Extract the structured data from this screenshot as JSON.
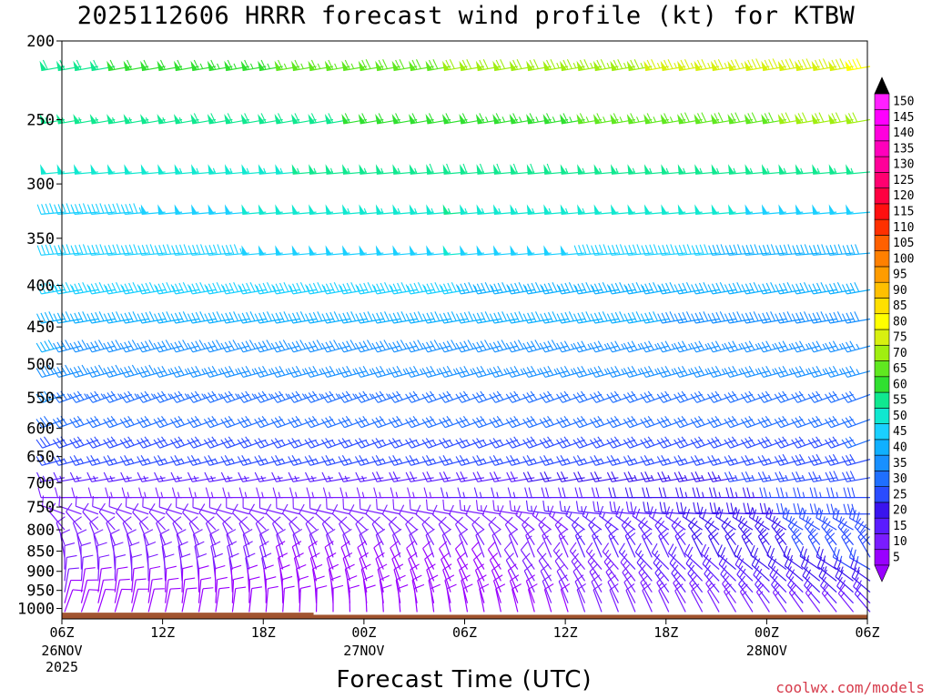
{
  "title": "2025112606 HRRR forecast wind profile (kt) for KTBW",
  "credit": "coolwx.com/models",
  "chart_data": {
    "type": "wind-barb-time-height",
    "title": "2025112606 HRRR forecast wind profile (kt) for KTBW",
    "xlabel": "Forecast Time (UTC)",
    "ylabel": "",
    "x_ticks": [
      "06Z",
      "12Z",
      "18Z",
      "00Z",
      "06Z",
      "12Z",
      "18Z",
      "00Z",
      "06Z"
    ],
    "x_date_labels": [
      {
        "tick": 0,
        "lines": [
          "26NOV",
          "2025"
        ]
      },
      {
        "tick": 3,
        "lines": [
          "27NOV"
        ]
      },
      {
        "tick": 7,
        "lines": [
          "28NOV"
        ]
      }
    ],
    "x_range_hours": [
      0,
      48
    ],
    "y_ticks_hpa": [
      200,
      250,
      300,
      350,
      400,
      450,
      500,
      550,
      600,
      650,
      700,
      750,
      800,
      850,
      900,
      950,
      1000
    ],
    "y_range_hpa": [
      200,
      1030
    ],
    "y_scale": "log",
    "grid": false,
    "colorbar": {
      "units": "kt",
      "levels": [
        5,
        10,
        15,
        20,
        25,
        30,
        35,
        40,
        45,
        50,
        55,
        60,
        65,
        70,
        75,
        80,
        85,
        90,
        95,
        100,
        105,
        110,
        115,
        120,
        125,
        130,
        135,
        140,
        145,
        150
      ],
      "colors": [
        "#9900ff",
        "#7a1cff",
        "#5a1cff",
        "#3a14ee",
        "#2a4cff",
        "#1f6fff",
        "#1890ff",
        "#10b0ff",
        "#1ad0ff",
        "#10e8d0",
        "#10e890",
        "#30e030",
        "#60e820",
        "#a0ee10",
        "#d8f010",
        "#ffff00",
        "#ffe000",
        "#ffc000",
        "#ff9c00",
        "#ff8000",
        "#ff6000",
        "#ff3000",
        "#ff1010",
        "#ff0040",
        "#ff0070",
        "#ff0099",
        "#ff00bb",
        "#ff00dd",
        "#ff00ff",
        "#ff20ff"
      ],
      "extend": "both"
    },
    "levels_hpa": [
      215,
      250,
      290,
      325,
      365,
      405,
      440,
      475,
      510,
      545,
      585,
      620,
      655,
      690,
      730,
      765,
      800,
      835,
      865,
      895,
      925,
      955,
      985,
      1010
    ],
    "wind_regime_by_level": [
      {
        "p": 215,
        "speed_kt": [
          58,
          70,
          80
        ],
        "dir_deg": 260
      },
      {
        "p": 250,
        "speed_kt": [
          55,
          62,
          72
        ],
        "dir_deg": 260
      },
      {
        "p": 290,
        "speed_kt": [
          50,
          58,
          56
        ],
        "dir_deg": 265
      },
      {
        "p": 325,
        "speed_kt": [
          45,
          55,
          48
        ],
        "dir_deg": 265
      },
      {
        "p": 365,
        "speed_kt": [
          45,
          50,
          42
        ],
        "dir_deg": 265
      },
      {
        "p": 405,
        "speed_kt": [
          45,
          45,
          40
        ],
        "dir_deg": 260
      },
      {
        "p": 440,
        "speed_kt": [
          42,
          42,
          38
        ],
        "dir_deg": 260
      },
      {
        "p": 475,
        "speed_kt": [
          40,
          38,
          36
        ],
        "dir_deg": 255
      },
      {
        "p": 510,
        "speed_kt": [
          38,
          36,
          35
        ],
        "dir_deg": 255
      },
      {
        "p": 545,
        "speed_kt": [
          35,
          32,
          32
        ],
        "dir_deg": 250
      },
      {
        "p": 585,
        "speed_kt": [
          30,
          30,
          30
        ],
        "dir_deg": 250
      },
      {
        "p": 620,
        "speed_kt": [
          28,
          27,
          30
        ],
        "dir_deg": 250
      },
      {
        "p": 655,
        "speed_kt": [
          25,
          25,
          28
        ],
        "dir_deg": 255
      },
      {
        "p": 690,
        "speed_kt": [
          15,
          18,
          28
        ],
        "dir_deg": 260
      },
      {
        "p": 730,
        "speed_kt": [
          12,
          15,
          28
        ],
        "dir_deg": 270
      },
      {
        "p": 765,
        "speed_kt": [
          10,
          12,
          28
        ],
        "dir_deg": 290
      },
      {
        "p": 800,
        "speed_kt": [
          10,
          10,
          28
        ],
        "dir_deg": 320
      },
      {
        "p": 835,
        "speed_kt": [
          10,
          10,
          28
        ],
        "dir_deg": 340
      },
      {
        "p": 865,
        "speed_kt": [
          10,
          10,
          28
        ],
        "dir_deg": 350
      },
      {
        "p": 895,
        "speed_kt": [
          12,
          8,
          26
        ],
        "dir_deg": 0
      },
      {
        "p": 925,
        "speed_kt": [
          12,
          8,
          24
        ],
        "dir_deg": 5
      },
      {
        "p": 955,
        "speed_kt": [
          10,
          8,
          22
        ],
        "dir_deg": 10
      },
      {
        "p": 985,
        "speed_kt": [
          8,
          8,
          18
        ],
        "dir_deg": 15
      },
      {
        "p": 1010,
        "speed_kt": [
          8,
          8,
          15
        ],
        "dir_deg": 20
      }
    ],
    "time_step_hours": 1,
    "surface_fill_color": "#a0522d"
  },
  "axes": {
    "xlabel": "Forecast Time (UTC)"
  }
}
